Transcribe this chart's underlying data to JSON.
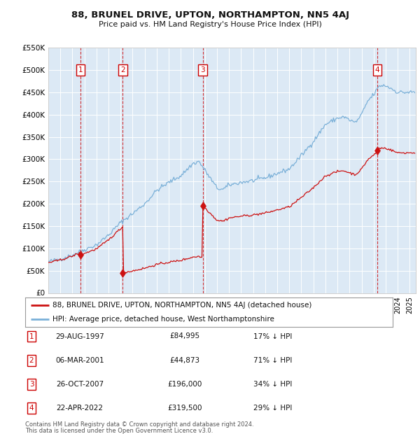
{
  "title": "88, BRUNEL DRIVE, UPTON, NORTHAMPTON, NN5 4AJ",
  "subtitle": "Price paid vs. HM Land Registry's House Price Index (HPI)",
  "background_color": "#dce9f5",
  "plot_bg_color": "#dce9f5",
  "hpi_color": "#7ab0d8",
  "price_color": "#cc1111",
  "ylim": [
    0,
    550000
  ],
  "yticks": [
    0,
    50000,
    100000,
    150000,
    200000,
    250000,
    300000,
    350000,
    400000,
    450000,
    500000,
    550000
  ],
  "ytick_labels": [
    "£0",
    "£50K",
    "£100K",
    "£150K",
    "£200K",
    "£250K",
    "£300K",
    "£350K",
    "£400K",
    "£450K",
    "£500K",
    "£550K"
  ],
  "xlim_start": 1995.0,
  "xlim_end": 2025.5,
  "transactions": [
    {
      "num": 1,
      "date_label": "29-AUG-1997",
      "price": 84995,
      "year": 1997.66,
      "pct": "17% ↓ HPI"
    },
    {
      "num": 2,
      "date_label": "06-MAR-2001",
      "price": 44873,
      "year": 2001.18,
      "pct": "71% ↓ HPI"
    },
    {
      "num": 3,
      "date_label": "26-OCT-2007",
      "price": 196000,
      "year": 2007.82,
      "pct": "34% ↓ HPI"
    },
    {
      "num": 4,
      "date_label": "22-APR-2022",
      "price": 319500,
      "year": 2022.31,
      "pct": "29% ↓ HPI"
    }
  ],
  "legend_line1": "88, BRUNEL DRIVE, UPTON, NORTHAMPTON, NN5 4AJ (detached house)",
  "legend_line2": "HPI: Average price, detached house, West Northamptonshire",
  "footer1": "Contains HM Land Registry data © Crown copyright and database right 2024.",
  "footer2": "This data is licensed under the Open Government Licence v3.0."
}
